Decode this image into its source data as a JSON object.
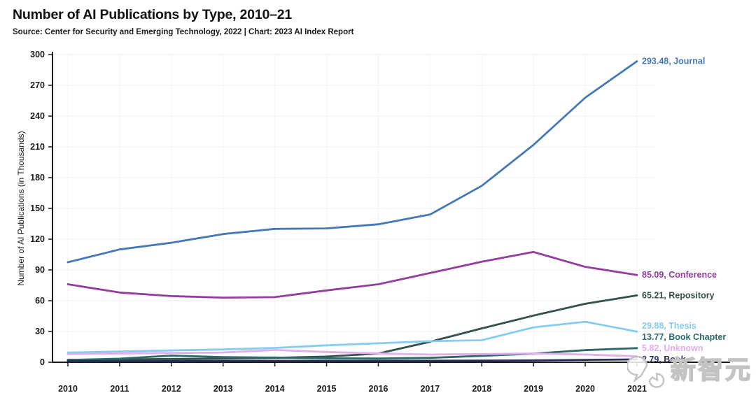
{
  "header": {
    "title": "Number of AI Publications by Type, 2010–21",
    "subtitle": "Source: Center for Security and Emerging Technology, 2022 | Chart: 2023 AI Index Report"
  },
  "watermark": {
    "text": "新智元",
    "icon": "chat-bubbles-icon"
  },
  "chart_data": {
    "type": "line",
    "title": "Number of AI Publications by Type, 2010–21",
    "x": [
      2010,
      2011,
      2012,
      2013,
      2014,
      2015,
      2016,
      2017,
      2018,
      2019,
      2020,
      2021
    ],
    "ylabel": "Number of AI Publications (in Thousands)",
    "ylim": [
      0,
      300
    ],
    "ytick_step": 30,
    "grid": true,
    "legend_position": "right-end-annotations",
    "series": [
      {
        "name": "Journal",
        "annotation": "293.48, Journal",
        "color": "#4479b9",
        "values": [
          97.5,
          110,
          116.5,
          125,
          130,
          130.5,
          134.5,
          144,
          172,
          212,
          258,
          293.48
        ]
      },
      {
        "name": "Conference",
        "annotation": "85.09, Conference",
        "color": "#963c9e",
        "values": [
          76,
          68,
          64.5,
          63,
          63.5,
          70,
          76,
          87,
          98,
          107.5,
          93,
          85.09
        ]
      },
      {
        "name": "Repository",
        "annotation": "65.21, Repository",
        "color": "#33514d",
        "values": [
          2.4,
          2.8,
          3.2,
          3.7,
          4.3,
          5.5,
          8.5,
          20,
          33,
          45.5,
          57,
          65.21
        ]
      },
      {
        "name": "Thesis",
        "annotation": "29.88, Thesis",
        "color": "#85cdf0",
        "values": [
          9.5,
          10.5,
          11.5,
          12.5,
          14,
          16.5,
          18.5,
          20.5,
          21.5,
          34,
          39.5,
          29.88
        ]
      },
      {
        "name": "Book Chapter",
        "annotation": "13.77, Book Chapter",
        "color": "#2b6a6a",
        "values": [
          2.2,
          3.5,
          6.5,
          5,
          4.6,
          3.8,
          3.7,
          4.3,
          6.2,
          8.4,
          11.8,
          13.77
        ]
      },
      {
        "name": "Unknown",
        "annotation": "5.82, Unknown",
        "color": "#e2aeea",
        "values": [
          8,
          8.5,
          9,
          9.5,
          12,
          10,
          8.6,
          7.5,
          8,
          8.5,
          7.5,
          5.82
        ]
      },
      {
        "name": "Book",
        "annotation": "2.79, Book",
        "color": "#28305a",
        "values": [
          1.2,
          1.3,
          1.3,
          1.4,
          1.4,
          1.4,
          1.5,
          1.5,
          1.6,
          1.8,
          2.3,
          2.79
        ],
        "note": "annotation partially hidden behind watermark"
      }
    ]
  }
}
